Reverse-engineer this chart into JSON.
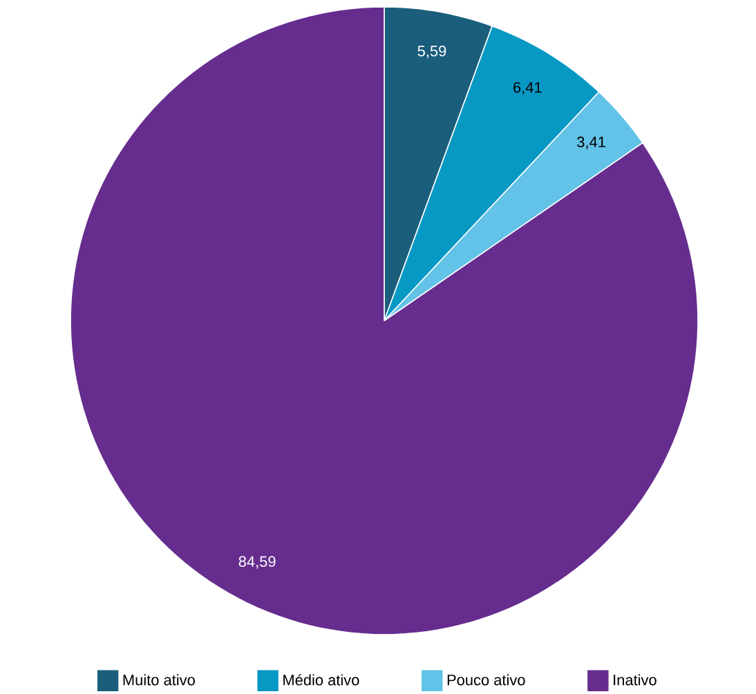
{
  "chart_data": {
    "type": "pie",
    "categories": [
      "Muito ativo",
      "Médio ativo",
      "Pouco ativo",
      "Inativo"
    ],
    "values": [
      5.59,
      6.41,
      3.41,
      84.59
    ],
    "value_labels": [
      "5,59",
      "6,41",
      "3,41",
      "84,59"
    ],
    "colors": [
      "#1b5e7b",
      "#0898c4",
      "#62c2e7",
      "#662d8f"
    ],
    "legend": "bottom"
  }
}
